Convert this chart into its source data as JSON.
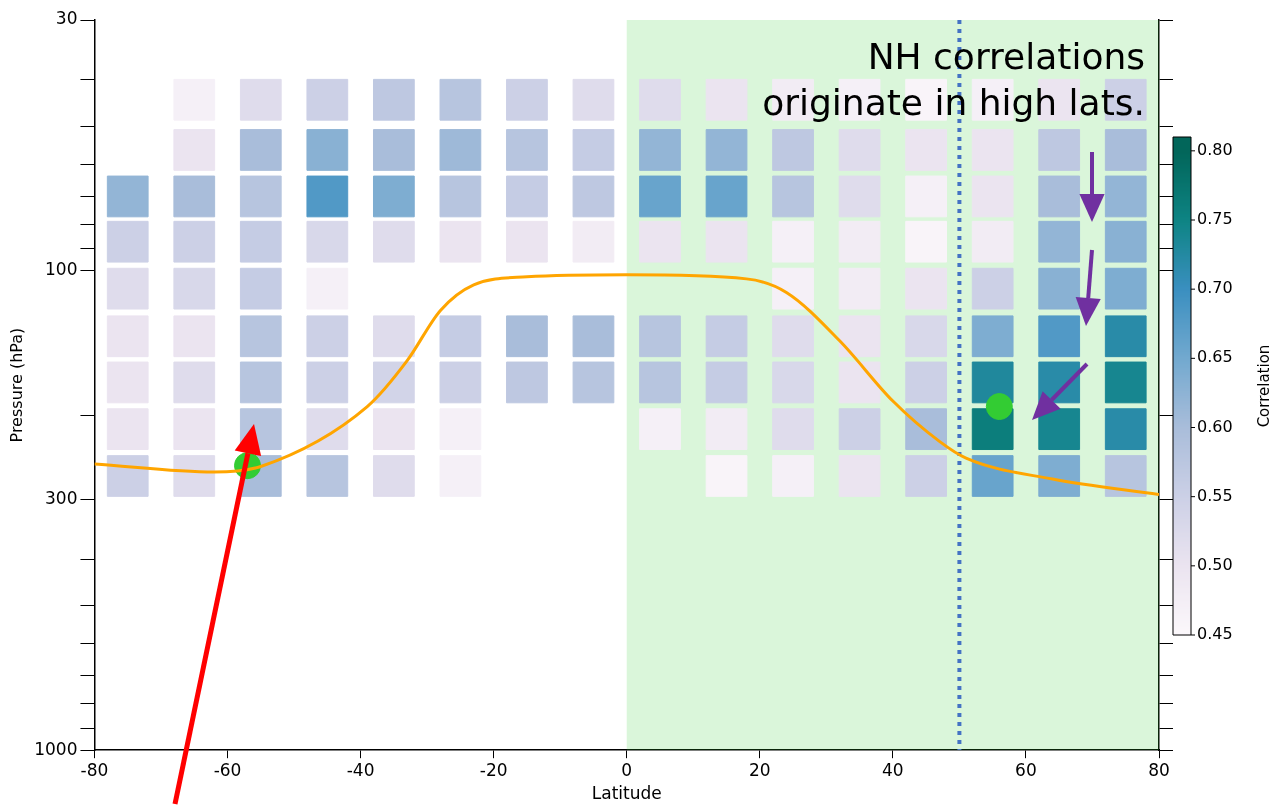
{
  "chart_data": {
    "type": "scatter",
    "xlabel": "Latitude",
    "ylabel": "Pressure (hPa)",
    "clabel": "Correlation",
    "annotations": [
      "NH correlations\noriginate in high lats."
    ],
    "clim": [
      0.45,
      0.81
    ],
    "cticks": [
      0.45,
      {
        "value": 0.5,
        "label": "0.50"
      },
      0.55,
      {
        "value": 0.6,
        "label": "0.60"
      },
      0.65,
      {
        "value": 0.7,
        "label": "0.70"
      },
      0.75,
      {
        "value": 0.8,
        "label": "0.80"
      }
    ],
    "series": [
      {
        "type": "scatter",
        "marker": "square",
        "colors": [
          "#f5f0f7",
          "#dfdcec",
          "#ccd0e6",
          "#bec8e1",
          "#b7c5df",
          "#ccd0e6",
          "#dfdcec",
          "#dfdcec",
          "#ebe4f0",
          "#f2ecf4",
          "#f5f0f7",
          "#f9f4f9",
          "#f5f0f7",
          "#ebe4f0",
          "#ccd0e6",
          "#ebe4f0",
          "#a9bdda",
          "#89b1d3",
          "#a9bdda",
          "#9eb9d8",
          "#b7c5df",
          "#c5cce4",
          "#93b5d6",
          "#93b5d6",
          "#bec8e1",
          "#dfdcec",
          "#ebe4f0",
          "#ebe4f0",
          "#bec8e1",
          "#a9bdda",
          "#93b5d6",
          "#a9bdda",
          "#b7c5df",
          "#5199c6",
          "#7eadd1",
          "#b7c5df",
          "#c5cce4",
          "#bec8e1",
          "#68a4cc",
          "#68a4cc",
          "#b7c5df",
          "#dfdcec",
          "#f5f0f7",
          "#ebe4f0",
          "#a9bdda",
          "#93b5d6",
          "#ccd0e6",
          "#ccd0e6",
          "#c5cce4",
          "#d8d8ea",
          "#dfdcec",
          "#ebe4f0",
          "#ebe4f0",
          "#f2ecf4",
          "#ebe4f0",
          "#ebe4f0",
          "#f5f0f7",
          "#f2ecf4",
          "#f9f4f9",
          "#f2ecf4",
          "#93b5d6",
          "#89b1d3",
          "#dfdcec",
          "#d8d8ea",
          "#c5cce4",
          "#f5f0f7",
          "#f5f0f7",
          "#f2ecf4",
          "#ebe4f0",
          "#ccd0e6",
          "#89b1d3",
          "#7eadd1",
          "#ebe4f0",
          "#ebe4f0",
          "#b7c5df",
          "#ccd0e6",
          "#dfdcec",
          "#c5cce4",
          "#a9bdda",
          "#a9bdda",
          "#b7c5df",
          "#c5cce4",
          "#dfdcec",
          "#ebe4f0",
          "#d8d8ea",
          "#7eadd1",
          "#5199c6",
          "#298ba8",
          "#ebe4f0",
          "#dfdcec",
          "#b7c5df",
          "#ccd0e6",
          "#d2d4e8",
          "#ccd0e6",
          "#bec8e1",
          "#b7c5df",
          "#b7c5df",
          "#c5cce4",
          "#d8d8ea",
          "#ebe4f0",
          "#ccd0e6",
          "#20889c",
          "#298ba8",
          "#178690",
          "#ebe4f0",
          "#ebe4f0",
          "#b7c5df",
          "#dfdcec",
          "#ebe4f0",
          "#f5f0f7",
          "#f5f0f7",
          "#f2ecf4",
          "#dfdcec",
          "#ccd0e6",
          "#a9bdda",
          "#0c7e7c",
          "#178690",
          "#298ba8",
          "#ccd0e6",
          "#dfdcec",
          "#a9bdda",
          "#b7c5df",
          "#dfdcec",
          "#f5f0f7",
          "#f9f4f9",
          "#f5f0f7",
          "#ebe4f0",
          "#ccd0e6",
          "#68a4cc",
          "#7eadd1",
          "#b7c5df"
        ],
        "x": [
          -65,
          -55,
          -45,
          -35,
          -25,
          -15,
          -5,
          5,
          15,
          25,
          35,
          45,
          55,
          65,
          75,
          -65,
          -55,
          -45,
          -35,
          -25,
          -15,
          -5,
          5,
          15,
          25,
          35,
          45,
          55,
          65,
          75,
          -75,
          -65,
          -55,
          -45,
          -35,
          -25,
          -15,
          -5,
          5,
          15,
          25,
          35,
          45,
          55,
          65,
          75,
          -75,
          -65,
          -55,
          -45,
          -35,
          -25,
          -15,
          -5,
          5,
          15,
          25,
          35,
          45,
          55,
          65,
          75,
          -75,
          -65,
          -55,
          -45,
          25,
          35,
          45,
          55,
          65,
          75,
          -75,
          -65,
          -55,
          -45,
          -35,
          -25,
          -15,
          -5,
          5,
          15,
          25,
          35,
          45,
          55,
          65,
          75,
          -75,
          -65,
          -55,
          -45,
          -35,
          -25,
          -15,
          -5,
          5,
          15,
          25,
          35,
          45,
          55,
          65,
          75,
          -75,
          -65,
          -55,
          -45,
          -35,
          -25,
          5,
          15,
          25,
          35,
          45,
          55,
          65,
          75,
          -75,
          -65,
          -55,
          -45,
          -35,
          -25,
          15,
          25,
          35,
          45,
          55,
          65,
          75
        ],
        "values": [
          44,
          44,
          44,
          44,
          44,
          44,
          44,
          44,
          44,
          44,
          44,
          44,
          44,
          44,
          44,
          56,
          56,
          56,
          56,
          56,
          56,
          56,
          56,
          56,
          56,
          56,
          56,
          56,
          56,
          56,
          70,
          70,
          70,
          70,
          70,
          70,
          70,
          70,
          70,
          70,
          70,
          70,
          70,
          70,
          70,
          70,
          87,
          87,
          87,
          87,
          87,
          87,
          87,
          87,
          87,
          87,
          87,
          87,
          87,
          87,
          87,
          87,
          109,
          109,
          109,
          109,
          109,
          109,
          109,
          109,
          109,
          109,
          137,
          137,
          137,
          137,
          137,
          137,
          137,
          137,
          137,
          137,
          137,
          137,
          137,
          137,
          137,
          137,
          171,
          171,
          171,
          171,
          171,
          171,
          171,
          171,
          171,
          171,
          171,
          171,
          171,
          171,
          171,
          171,
          214,
          214,
          214,
          214,
          214,
          214,
          214,
          214,
          214,
          214,
          214,
          214,
          214,
          214,
          268,
          268,
          268,
          268,
          268,
          268,
          268,
          268,
          268,
          268,
          268,
          268,
          268
        ],
        "cvalues": [
          0.47,
          0.52,
          0.55,
          0.57,
          0.58,
          0.55,
          0.52,
          0.52,
          0.5,
          0.48,
          0.47,
          0.46,
          0.47,
          0.5,
          0.55,
          0.5,
          0.6,
          0.63,
          0.6,
          0.61,
          0.58,
          0.56,
          0.62,
          0.62,
          0.57,
          0.52,
          0.5,
          0.5,
          0.57,
          0.6,
          0.62,
          0.6,
          0.58,
          0.68,
          0.64,
          0.58,
          0.56,
          0.57,
          0.66,
          0.66,
          0.58,
          0.52,
          0.47,
          0.5,
          0.6,
          0.62,
          0.55,
          0.55,
          0.56,
          0.53,
          0.52,
          0.5,
          0.5,
          0.48,
          0.5,
          0.5,
          0.47,
          0.48,
          0.46,
          0.48,
          0.62,
          0.63,
          0.52,
          0.53,
          0.56,
          0.47,
          0.47,
          0.48,
          0.5,
          0.55,
          0.63,
          0.64,
          0.5,
          0.5,
          0.58,
          0.55,
          0.52,
          0.56,
          0.6,
          0.6,
          0.58,
          0.56,
          0.52,
          0.5,
          0.53,
          0.64,
          0.68,
          0.72,
          0.5,
          0.52,
          0.58,
          0.55,
          0.54,
          0.55,
          0.57,
          0.58,
          0.58,
          0.56,
          0.53,
          0.5,
          0.55,
          0.73,
          0.72,
          0.74,
          0.5,
          0.5,
          0.58,
          0.52,
          0.5,
          0.47,
          0.47,
          0.48,
          0.52,
          0.55,
          0.6,
          0.76,
          0.74,
          0.72,
          0.55,
          0.52,
          0.6,
          0.58,
          0.52,
          0.47,
          0.46,
          0.47,
          0.5,
          0.55,
          0.66,
          0.64,
          0.58
        ]
      },
      {
        "type": "line",
        "color": "#ffa500",
        "x": [
          -80,
          -62,
          -55,
          -39,
          -33,
          -28,
          -23,
          -15,
          0,
          18,
          24,
          32,
          40,
          47,
          51,
          64,
          80
        ],
        "values": [
          253,
          263,
          256,
          192,
          154,
          121,
          107,
          103,
          102,
          104,
          111,
          140,
          187,
          227,
          246,
          272,
          293
        ]
      },
      {
        "type": "scatter",
        "color": "#33cc33",
        "marker": "circle",
        "x": [
          -57,
          56
        ],
        "values": [
          255,
          192
        ]
      }
    ],
    "ref_lines": [
      {
        "axis": "x",
        "value": 50,
        "color": "#4472c4",
        "line_style": "dotted"
      }
    ],
    "bands": [
      {
        "axis": "x",
        "from": 0,
        "to": 80,
        "color": "#33cc33"
      }
    ],
    "xlim": [
      -80,
      80
    ],
    "xticks": [
      -80,
      -60,
      -40,
      -20,
      0,
      20,
      40,
      60,
      80
    ],
    "ylim": [
      1000,
      30
    ],
    "log": "y",
    "yticks": [
      30,
      {
        "value": 40,
        "label": null
      },
      {
        "value": 50,
        "label": null
      },
      {
        "value": 60,
        "label": null
      },
      {
        "value": 70,
        "label": null
      },
      {
        "value": 80,
        "label": null
      },
      {
        "value": 90,
        "label": null
      },
      100,
      {
        "value": 200,
        "label": null
      },
      300,
      {
        "value": 400,
        "label": null
      },
      {
        "value": 500,
        "label": null
      },
      {
        "value": 600,
        "label": null
      },
      {
        "value": 700,
        "label": null
      },
      {
        "value": 800,
        "label": null
      },
      {
        "value": 900,
        "label": null
      },
      1000
    ],
    "grid": false,
    "legend": false
  }
}
